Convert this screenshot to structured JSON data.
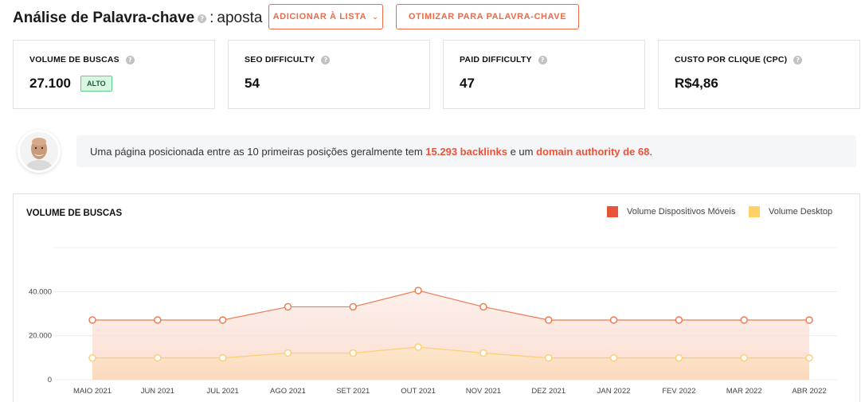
{
  "header": {
    "title": "Análise de Palavra-chave",
    "colon": ":",
    "keyword": "aposta",
    "add_to_list_label": "ADICIONAR À LISTA",
    "optimize_label": "OTIMIZAR PARA PALAVRA-CHAVE"
  },
  "metrics": [
    {
      "label": "VOLUME DE BUSCAS",
      "value": "27.100",
      "badge": "ALTO"
    },
    {
      "label": "SEO DIFFICULTY",
      "value": "54"
    },
    {
      "label": "PAID DIFFICULTY",
      "value": "47"
    },
    {
      "label": "CUSTO POR CLIQUE (CPC)",
      "value": "R$4,86"
    }
  ],
  "insight": {
    "prefix": "Uma página posicionada entre as 10 primeiras posições geralmente tem",
    "backlinks": "15.293 backlinks",
    "middle": "e um",
    "authority": "domain authority de 68",
    "suffix": "."
  },
  "chart_section": {
    "title": "VOLUME DE BUSCAS",
    "legend": [
      {
        "label": "Volume Dispositivos Móveis",
        "color": "#e8533a"
      },
      {
        "label": "Volume Desktop",
        "color": "#ffd166"
      }
    ]
  },
  "chart_data": {
    "type": "area",
    "categories": [
      "MAIO 2021",
      "JUN 2021",
      "JUL 2021",
      "AGO 2021",
      "SET 2021",
      "OUT 2021",
      "NOV 2021",
      "DEZ 2021",
      "JAN 2022",
      "FEV 2022",
      "MAR 2022",
      "ABR 2022"
    ],
    "y_ticks": [
      "0",
      "20.000",
      "40.000"
    ],
    "ylim": [
      0,
      60000
    ],
    "grid": true,
    "legend_position": "top-right",
    "series": [
      {
        "name": "Volume Dispositivos Móveis",
        "color": "#f07a53",
        "values": [
          27100,
          27100,
          27100,
          33100,
          33100,
          40500,
          33100,
          27100,
          27100,
          27100,
          27100,
          27100
        ]
      },
      {
        "name": "Volume Desktop",
        "color": "#fccf72",
        "values": [
          9900,
          9900,
          9900,
          12100,
          12100,
          14800,
          12100,
          9900,
          9900,
          9900,
          9900,
          9900
        ]
      }
    ]
  }
}
